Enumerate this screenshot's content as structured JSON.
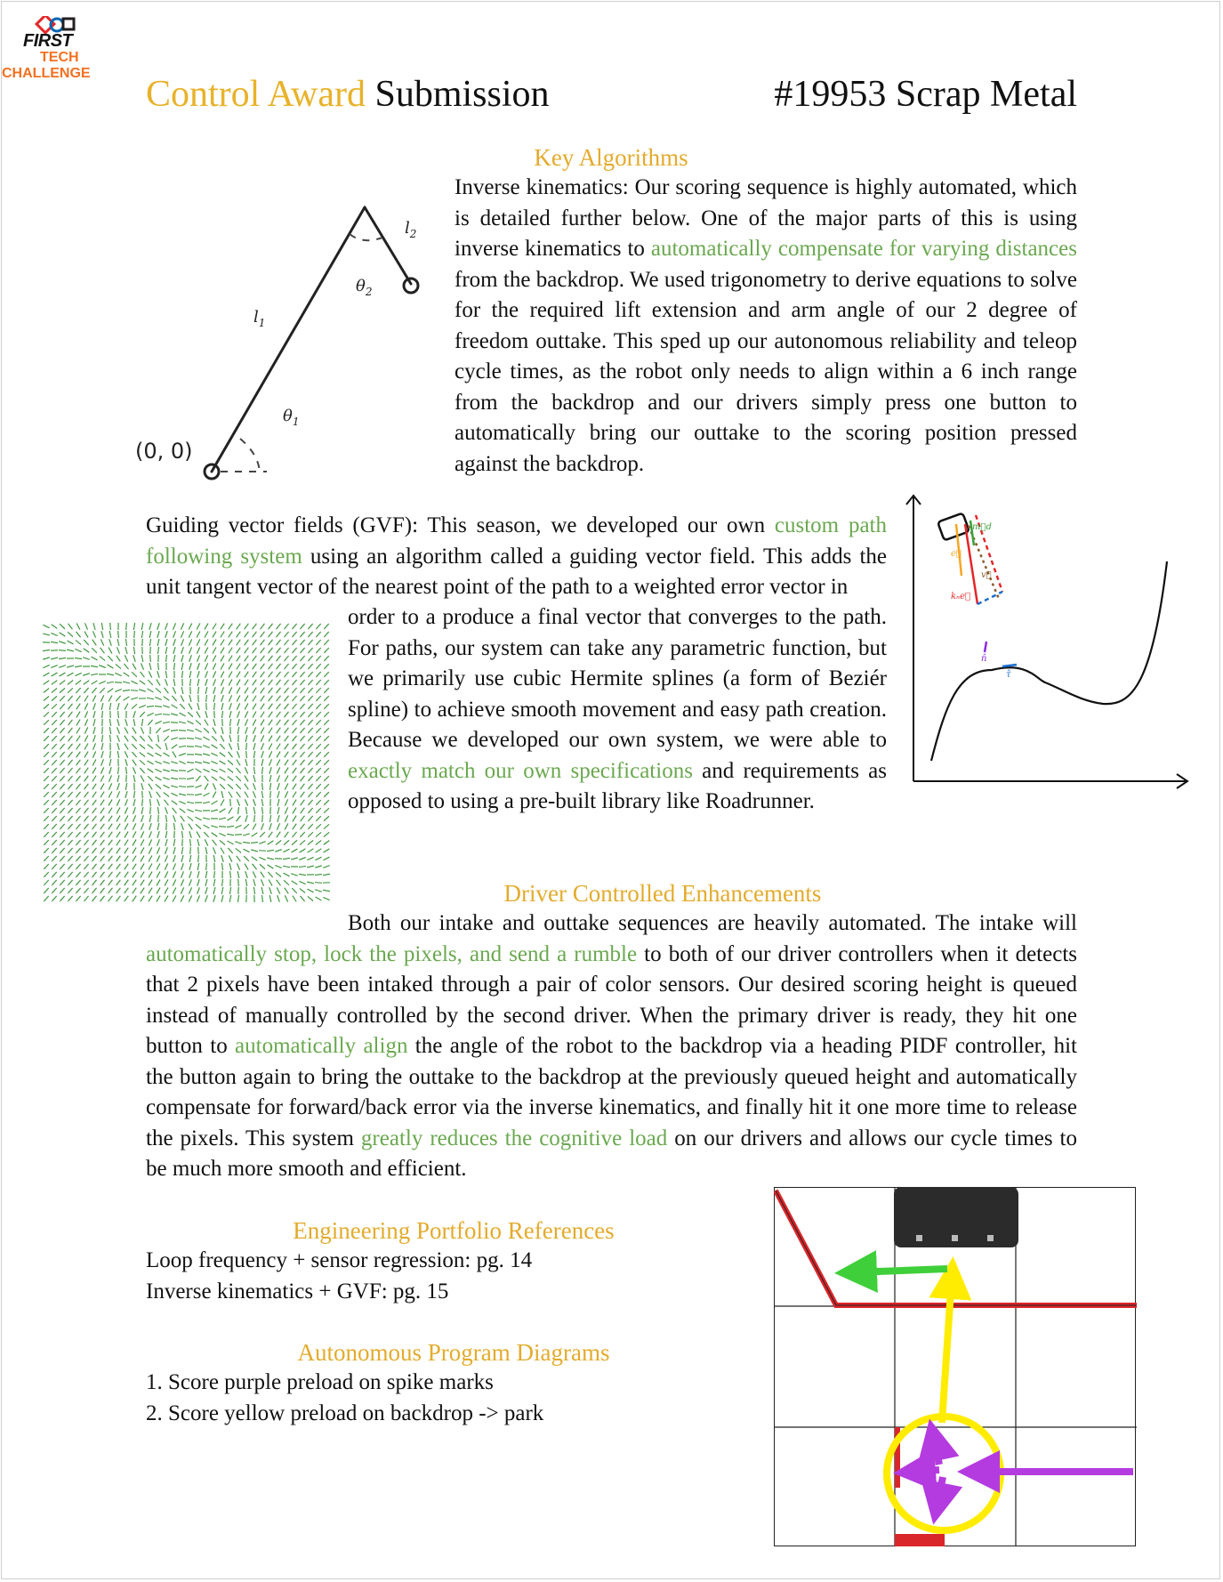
{
  "logo": {
    "line1": "FIRST",
    "line2": "TECH",
    "line3": "CHALLENGE"
  },
  "header": {
    "title_gold": "Control Award",
    "title_rest": " Submission",
    "team": "#19953 Scrap Metal"
  },
  "key_algorithms": {
    "heading": "Key Algorithms",
    "ik_label": "Inverse kinematics:",
    "ik_t1": " Our scoring sequence is highly automated, which is detailed further below. One of the major parts of this is using inverse kinematics to ",
    "ik_green1": "automatically compensate for varying distances",
    "ik_t2": " from the backdrop. We used trigonometry to derive equations to solve for the required lift extension and arm angle of our 2 degree of freedom outtake. This sped up our autonomous reliability and teleop cycle times, as the robot only needs to align within a 6 inch range from the backdrop and our drivers simply press one button to automatically bring our outtake to the scoring position pressed against the backdrop.",
    "diagram_labels": {
      "origin": "(0, 0)",
      "l1": "l",
      "l1_sub": "1",
      "l2": "l",
      "l2_sub": "2",
      "theta1": "θ",
      "theta1_sub": "1",
      "theta2": "θ",
      "theta2_sub": "2"
    }
  },
  "gvf": {
    "label": "Guiding vector fields (GVF):",
    "t1": " This season, we developed our own ",
    "green1": "custom path following system",
    "t2": " using an algorithm called a guiding vector field. This adds the unit tangent vector of the nearest point of the path to a weighted error vector in",
    "t3": "order to a produce a final vector that converges to the path. For paths, our system can take any parametric function, but we primarily use cubic Hermite splines (a form of Beziér spline) to achieve smooth movement and easy path creation. Because we developed our own system, we were able to ",
    "green2": "exactly match our own specifications",
    "t4": " and requirements as opposed to using a pre-built library like Roadrunner.",
    "graph_labels": {
      "md": "m⃗d",
      "e": "e⃗",
      "v": "v⃗",
      "ke": "kₙe⃗",
      "n": "n̂",
      "tau": "τ̂"
    }
  },
  "driver": {
    "heading": "Driver Controlled Enhancements",
    "t1": "Both our intake and outtake sequences are heavily automated. The intake will ",
    "green1": "automatically stop, lock the pixels, and send a rumble",
    "t2": " to both of our driver controllers when it detects that 2 pixels have been intaked through a pair of color sensors. Our desired scoring height is queued instead of manually controlled by the second driver. When the primary driver is ready, they hit one button to ",
    "green2": "automatically align",
    "t3": " the angle of the robot to the backdrop via a heading PIDF controller, hit the button again to bring the outtake to the backdrop at the previously queued height and automatically compensate for forward/back error via the inverse kinematics, and finally hit it one more time to release the pixels. This system ",
    "green3": "greatly reduces the cognitive load",
    "t4": " on our drivers and allows our cycle times to be much more smooth and efficient."
  },
  "references": {
    "heading": "Engineering Portfolio References",
    "items": [
      "Loop frequency + sensor regression: pg. 14",
      "Inverse kinematics + GVF: pg. 15"
    ]
  },
  "autonomous": {
    "heading": "Autonomous Program Diagrams",
    "items": [
      "1. Score purple preload on spike marks",
      "2. Score yellow preload on backdrop -> park"
    ]
  },
  "colors": {
    "gold": "#e8b22a",
    "green": "#6aa84f",
    "ftc_orange": "#f37021",
    "field_red": "#d9262b",
    "path_yellow": "#ffec00",
    "path_purple": "#b43be0",
    "path_green": "#3fcf3a"
  }
}
